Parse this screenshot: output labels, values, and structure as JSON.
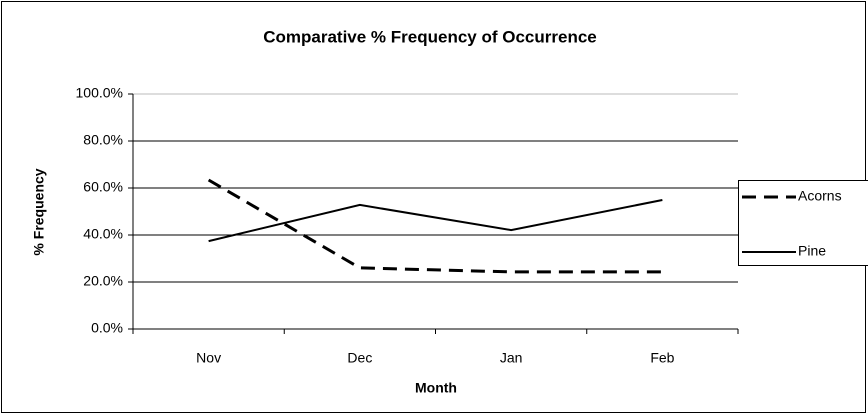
{
  "chart_data": {
    "type": "line",
    "title": "Comparative % Frequency of Occurrence",
    "x_label": "Month",
    "y_label": "% Frequency",
    "categories": [
      "Nov",
      "Dec",
      "Jan",
      "Feb"
    ],
    "series": [
      {
        "name": "Acorns",
        "color": "#000000",
        "dash": "dashed",
        "values": [
          63.4,
          26,
          24.3,
          24.3
        ]
      },
      {
        "name": "Pine",
        "color": "#000000",
        "dash": "solid",
        "values": [
          37.4,
          52.8,
          42.1,
          54.9
        ]
      }
    ],
    "ylim": [
      0,
      100
    ],
    "yticks": [
      {
        "value": 0,
        "label": "0.0%"
      },
      {
        "value": 20,
        "label": "20.0%"
      },
      {
        "value": 40,
        "label": "40.0%"
      },
      {
        "value": 60,
        "label": "60.0%"
      },
      {
        "value": 80,
        "label": "80.0%"
      },
      {
        "value": 100,
        "label": "100.0%"
      }
    ],
    "grid": true,
    "legend": "right"
  }
}
